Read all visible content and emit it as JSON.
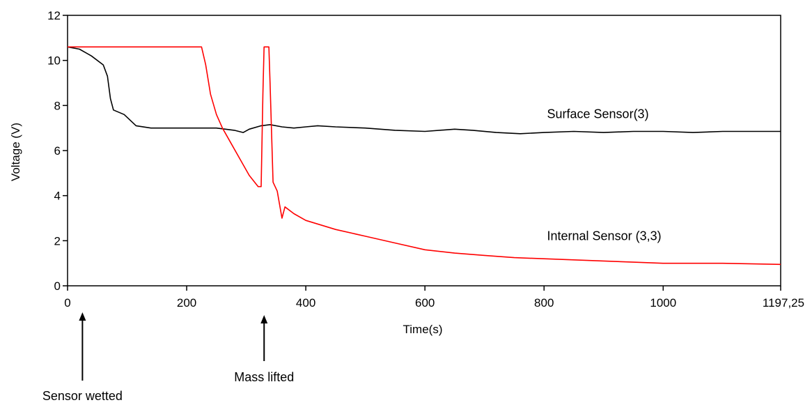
{
  "colors": {
    "background": "#ffffff",
    "plot_frame": "#000000",
    "surface_series": "#000000",
    "internal_series": "#ff0000"
  },
  "chart_data": {
    "type": "line",
    "title": "",
    "xlabel": "Time(s)",
    "ylabel": "Voltage (V)",
    "xlim": [
      0,
      1197.25
    ],
    "ylim": [
      0,
      12
    ],
    "grid": false,
    "x_ticks": [
      0,
      200,
      400,
      600,
      800,
      1000,
      1197.25
    ],
    "x_tick_labels": [
      "0",
      "200",
      "400",
      "600",
      "800",
      "1000",
      "1197,25"
    ],
    "y_ticks": [
      0,
      2,
      4,
      6,
      8,
      10,
      12
    ],
    "y_tick_labels": [
      "0",
      "2",
      "4",
      "6",
      "8",
      "10",
      "12"
    ],
    "series": [
      {
        "name": "Surface Sensor(3)",
        "color": "#000000",
        "points": [
          [
            0,
            10.6
          ],
          [
            20,
            10.5
          ],
          [
            40,
            10.2
          ],
          [
            60,
            9.8
          ],
          [
            67,
            9.3
          ],
          [
            72,
            8.3
          ],
          [
            77,
            7.8
          ],
          [
            95,
            7.6
          ],
          [
            115,
            7.1
          ],
          [
            140,
            7.0
          ],
          [
            200,
            7.0
          ],
          [
            250,
            7.0
          ],
          [
            280,
            6.9
          ],
          [
            295,
            6.8
          ],
          [
            305,
            6.95
          ],
          [
            325,
            7.1
          ],
          [
            340,
            7.15
          ],
          [
            360,
            7.05
          ],
          [
            380,
            7.0
          ],
          [
            400,
            7.05
          ],
          [
            420,
            7.1
          ],
          [
            450,
            7.05
          ],
          [
            500,
            7.0
          ],
          [
            550,
            6.9
          ],
          [
            600,
            6.85
          ],
          [
            650,
            6.95
          ],
          [
            680,
            6.9
          ],
          [
            720,
            6.8
          ],
          [
            760,
            6.75
          ],
          [
            800,
            6.8
          ],
          [
            850,
            6.85
          ],
          [
            900,
            6.8
          ],
          [
            950,
            6.85
          ],
          [
            1000,
            6.85
          ],
          [
            1050,
            6.8
          ],
          [
            1100,
            6.85
          ],
          [
            1150,
            6.85
          ],
          [
            1197.25,
            6.85
          ]
        ]
      },
      {
        "name": "Internal Sensor (3,3)",
        "color": "#ff0000",
        "points": [
          [
            0,
            10.6
          ],
          [
            225,
            10.6
          ],
          [
            232,
            9.8
          ],
          [
            240,
            8.5
          ],
          [
            250,
            7.6
          ],
          [
            260,
            7.0
          ],
          [
            275,
            6.3
          ],
          [
            290,
            5.6
          ],
          [
            305,
            4.9
          ],
          [
            320,
            4.4
          ],
          [
            325,
            4.4
          ],
          [
            328,
            8.5
          ],
          [
            330,
            10.6
          ],
          [
            338,
            10.6
          ],
          [
            340,
            9.0
          ],
          [
            345,
            4.6
          ],
          [
            352,
            4.2
          ],
          [
            360,
            3.0
          ],
          [
            365,
            3.5
          ],
          [
            380,
            3.2
          ],
          [
            400,
            2.9
          ],
          [
            450,
            2.5
          ],
          [
            500,
            2.2
          ],
          [
            550,
            1.9
          ],
          [
            600,
            1.6
          ],
          [
            650,
            1.45
          ],
          [
            700,
            1.35
          ],
          [
            750,
            1.25
          ],
          [
            800,
            1.2
          ],
          [
            850,
            1.15
          ],
          [
            900,
            1.1
          ],
          [
            950,
            1.05
          ],
          [
            1000,
            1.0
          ],
          [
            1100,
            1.0
          ],
          [
            1197.25,
            0.95
          ]
        ]
      }
    ],
    "series_labels": [
      {
        "text": "Surface Sensor(3)",
        "x": 805,
        "y": 7.0
      },
      {
        "text": "Internal Sensor (3,3)",
        "x": 805,
        "y": 1.6
      }
    ],
    "annotations": [
      {
        "text": "Sensor wetted",
        "x": 25
      },
      {
        "text": "Mass lifted",
        "x": 330
      }
    ]
  }
}
